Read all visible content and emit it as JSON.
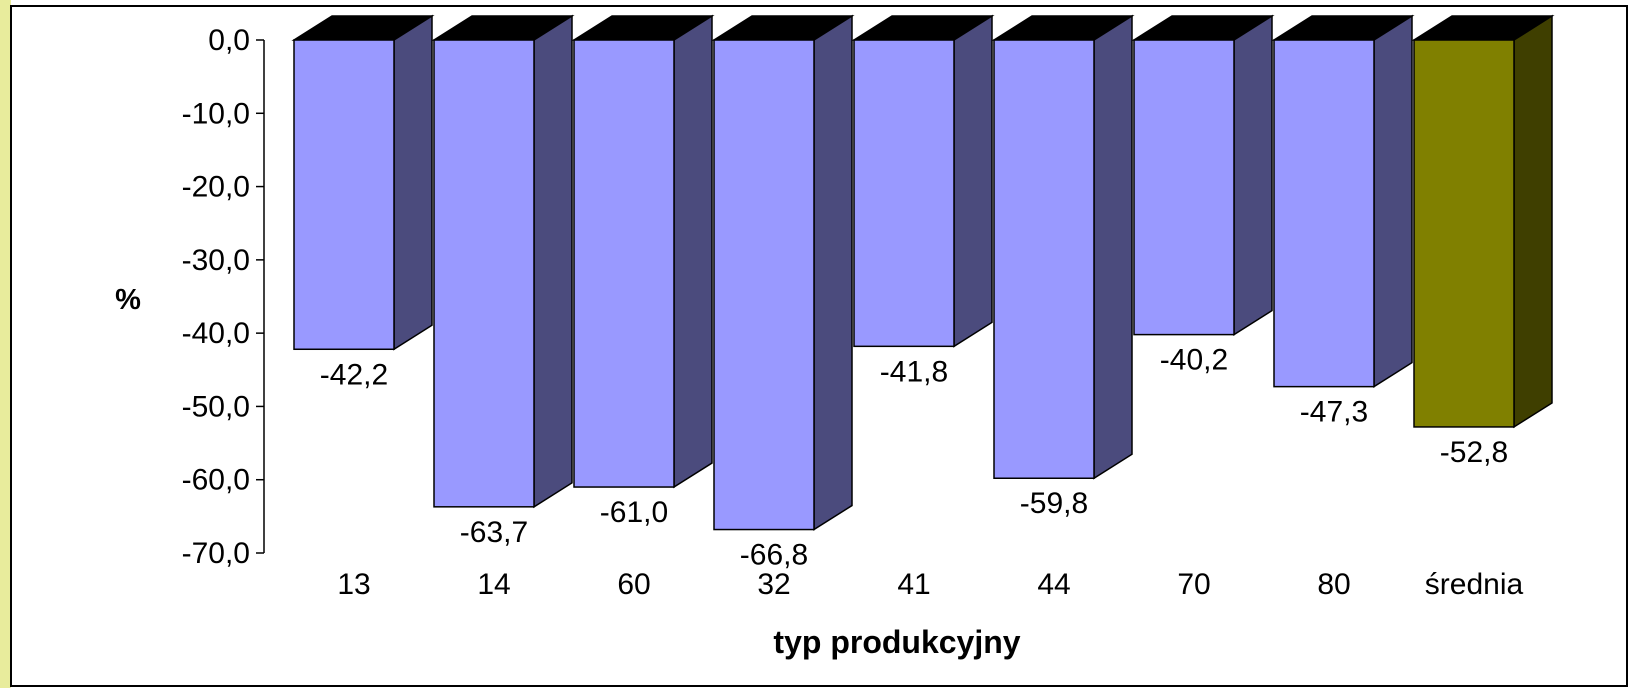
{
  "chart_data": {
    "type": "bar",
    "title": "",
    "xlabel": "typ produkcyjny",
    "ylabel": "%",
    "categories": [
      "13",
      "14",
      "60",
      "32",
      "41",
      "44",
      "70",
      "80",
      "średnia"
    ],
    "values": [
      -42.2,
      -63.7,
      -61.0,
      -66.8,
      -41.8,
      -59.8,
      -40.2,
      -47.3,
      -52.8
    ],
    "value_labels": [
      "-42,2",
      "-63,7",
      "-61,0",
      "-66,8",
      "-41,8",
      "-59,8",
      "-40,2",
      "-47,3",
      "-52,8"
    ],
    "ylim": [
      -70,
      0
    ],
    "yticks": [
      0,
      -10,
      -20,
      -30,
      -40,
      -50,
      -60,
      -70
    ],
    "ytick_labels": [
      "0,0",
      "-10,0",
      "-20,0",
      "-30,0",
      "-40,0",
      "-50,0",
      "-60,0",
      "-70,0"
    ],
    "grid": false,
    "legend": "none",
    "style": "3d-column",
    "colors": {
      "bar_front": "#9999ff",
      "bar_side": "#4b4b7d",
      "bar_top": "#000000",
      "highlight_front": "#808000",
      "highlight_side": "#3f3f00",
      "highlight_category": "średnia",
      "frame_left_accent": "#e8ec9c"
    }
  }
}
